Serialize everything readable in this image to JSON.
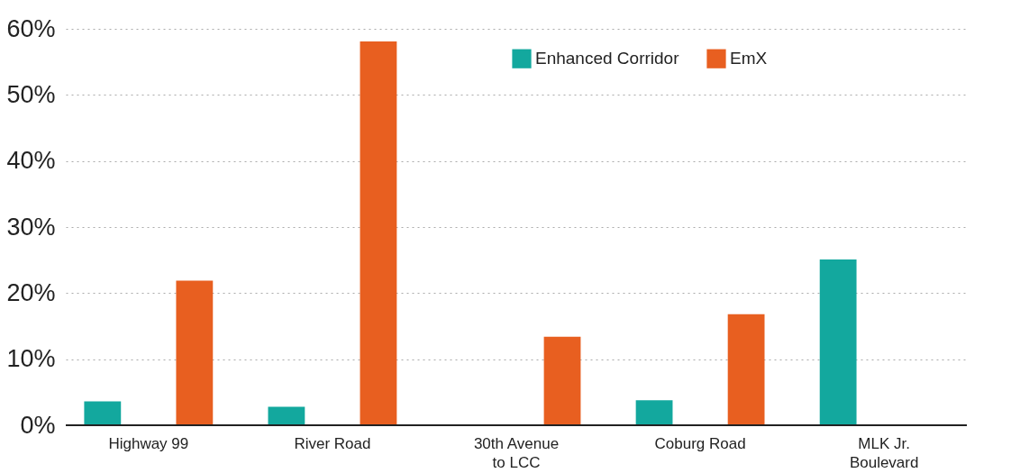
{
  "chart_data": {
    "type": "bar",
    "categories": [
      "Highway 99",
      "River Road",
      "30th Avenue to LCC",
      "Coburg Road",
      "MLK Jr. Boulevard"
    ],
    "series": [
      {
        "name": "Enhanced Corridor",
        "color": "#13a89e",
        "values": [
          3.6,
          2.8,
          null,
          3.8,
          25.1
        ]
      },
      {
        "name": "EmX",
        "color": "#e85f20",
        "values": [
          21.9,
          58.1,
          13.4,
          16.8,
          null
        ]
      }
    ],
    "ylim": [
      0,
      60
    ],
    "yticks": [
      {
        "value": 0,
        "label": "0%"
      },
      {
        "value": 10,
        "label": "10%"
      },
      {
        "value": 20,
        "label": "20%"
      },
      {
        "value": 30,
        "label": "30%"
      },
      {
        "value": 40,
        "label": "40%"
      },
      {
        "value": 50,
        "label": "50%"
      },
      {
        "value": 60,
        "label": "60%"
      }
    ],
    "grid": "y",
    "legend": "top right"
  }
}
